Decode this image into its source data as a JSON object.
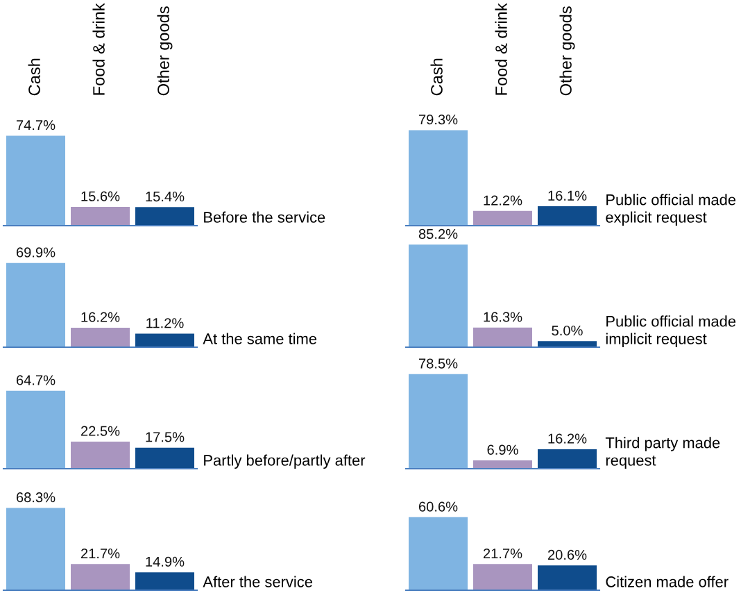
{
  "chart_data": [
    {
      "type": "bar",
      "title": "Before the service",
      "categories": [
        "Cash",
        "Food & drink",
        "Other goods"
      ],
      "values": [
        74.7,
        15.6,
        15.4
      ],
      "value_labels": [
        "74.7%",
        "15.6%",
        "15.4%"
      ],
      "colors": [
        "#7fb4e2",
        "#a995bf",
        "#0f4c8c"
      ],
      "tick_labels": "x"
    },
    {
      "type": "bar",
      "title": "At the same time",
      "categories": [
        null,
        null,
        null
      ],
      "values": [
        69.9,
        16.2,
        11.2
      ],
      "value_labels": [
        "69.9%",
        "16.2%",
        "11.2%"
      ],
      "colors": [
        "#7fb4e2",
        "#a995bf",
        "#0f4c8c"
      ]
    },
    {
      "type": "bar",
      "title": "Partly before/partly after",
      "categories": [
        null,
        null,
        null
      ],
      "values": [
        64.7,
        22.5,
        17.5
      ],
      "value_labels": [
        "64.7%",
        "22.5%",
        "17.5%"
      ],
      "colors": [
        "#7fb4e2",
        "#a995bf",
        "#0f4c8c"
      ]
    },
    {
      "type": "bar",
      "title": "After the service",
      "categories": [
        null,
        null,
        null
      ],
      "values": [
        68.3,
        21.7,
        14.9
      ],
      "value_labels": [
        "68.3%",
        "21.7%",
        "14.9%"
      ],
      "colors": [
        "#7fb4e2",
        "#a995bf",
        "#0f4c8c"
      ]
    },
    {
      "type": "bar",
      "title": "Public official made\nexplicit request",
      "categories": [
        "Cash",
        "Food & drink",
        "Other goods"
      ],
      "values": [
        79.3,
        12.2,
        16.1
      ],
      "value_labels": [
        "79.3%",
        "12.2%",
        "16.1%"
      ],
      "colors": [
        "#7fb4e2",
        "#a995bf",
        "#0f4c8c"
      ],
      "tick_labels": "x"
    },
    {
      "type": "bar",
      "title": "Public official made\nimplicit request",
      "categories": [
        null,
        null,
        null
      ],
      "values": [
        85.2,
        16.3,
        5.0
      ],
      "value_labels": [
        "85.2%",
        "16.3%",
        "5.0%"
      ],
      "colors": [
        "#7fb4e2",
        "#a995bf",
        "#0f4c8c"
      ]
    },
    {
      "type": "bar",
      "title": "Third party made\nrequest",
      "categories": [
        null,
        null,
        null
      ],
      "values": [
        78.5,
        6.9,
        16.2
      ],
      "value_labels": [
        "78.5%",
        "6.9%",
        "16.2%"
      ],
      "colors": [
        "#7fb4e2",
        "#a995bf",
        "#0f4c8c"
      ]
    },
    {
      "type": "bar",
      "title": "Citizen made offer",
      "categories": [
        null,
        null,
        null
      ],
      "values": [
        60.6,
        21.7,
        20.6
      ],
      "value_labels": [
        "60.6%",
        "21.7%",
        "20.6%"
      ],
      "colors": [
        "#7fb4e2",
        "#a995bf",
        "#0f4c8c"
      ]
    }
  ]
}
